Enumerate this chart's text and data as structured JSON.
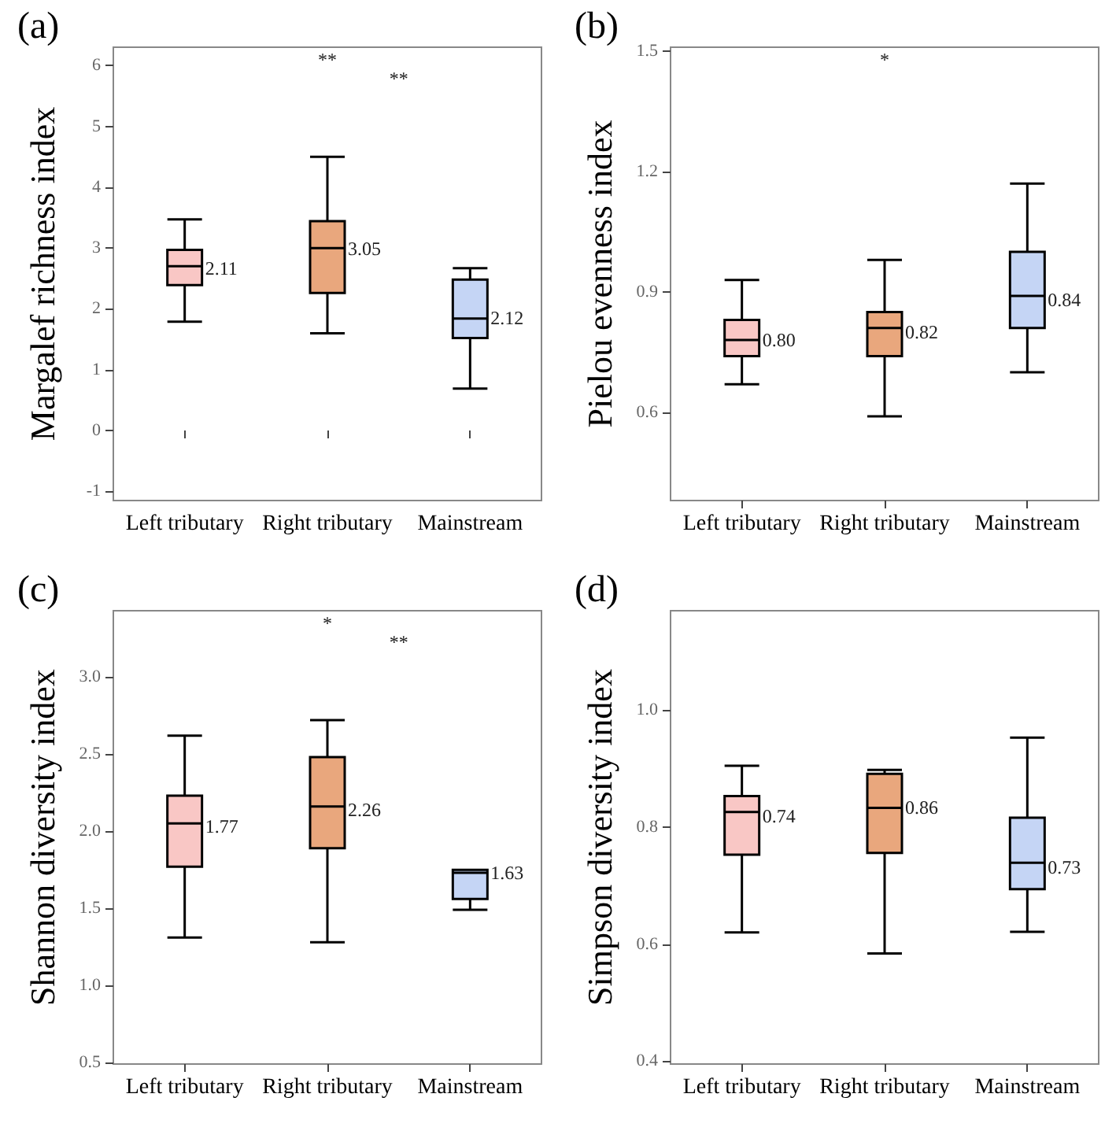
{
  "chart_data": [
    {
      "type": "box",
      "title": "(a)",
      "ylabel": "Margalef richness index",
      "categories": [
        "Left tributary",
        "Right tributary",
        "Mainstream"
      ],
      "colors": [
        "#f9c7c5",
        "#e9a77d",
        "#c5d5f5"
      ],
      "boxes": [
        {
          "low": 1.79,
          "q1": 2.39,
          "median": 2.7,
          "q3": 2.97,
          "high": 3.47
        },
        {
          "low": 1.6,
          "q1": 2.26,
          "median": 3.0,
          "q3": 3.44,
          "high": 4.5
        },
        {
          "low": 0.69,
          "q1": 1.52,
          "median": 1.84,
          "q3": 2.48,
          "high": 2.67
        }
      ],
      "ylim": [
        -1.15,
        6.3
      ],
      "yticks": [
        -1,
        0,
        1,
        2,
        3,
        4,
        5,
        6
      ],
      "grid": false,
      "annotations": [
        {
          "text": "2.11",
          "x": "Left tributary",
          "y": 2.66
        },
        {
          "text": "3.05",
          "x": "Right tributary",
          "y": 2.99
        },
        {
          "text": "2.12",
          "x": "Mainstream",
          "y": 1.85
        },
        "**",
        "**"
      ]
    },
    {
      "type": "box",
      "title": "(b)",
      "ylabel": "Pielou evenness index",
      "categories": [
        "Left tributary",
        "Right tributary",
        "Mainstream"
      ],
      "colors": [
        "#f9c7c5",
        "#e9a77d",
        "#c5d5f5"
      ],
      "boxes": [
        {
          "low": 0.67,
          "q1": 0.74,
          "median": 0.78,
          "q3": 0.83,
          "high": 0.93
        },
        {
          "low": 0.59,
          "q1": 0.74,
          "median": 0.81,
          "q3": 0.85,
          "high": 0.98
        },
        {
          "low": 0.7,
          "q1": 0.81,
          "median": 0.89,
          "q3": 1.0,
          "high": 1.17
        }
      ],
      "ylim": [
        0.38,
        1.51
      ],
      "yticks": [
        0.6,
        0.9,
        1.2,
        1.5
      ],
      "grid": false,
      "annotations": [
        {
          "text": "0.80",
          "x": "Left tributary",
          "y": 0.78
        },
        {
          "text": "0.82",
          "x": "Right tributary",
          "y": 0.8
        },
        {
          "text": "0.84",
          "x": "Mainstream",
          "y": 0.88
        },
        "*"
      ]
    },
    {
      "type": "box",
      "title": "(c)",
      "ylabel": "Shannon diversity index",
      "categories": [
        "Left tributary",
        "Right tributary",
        "Mainstream"
      ],
      "colors": [
        "#f9c7c5",
        "#e9a77d",
        "#c5d5f5"
      ],
      "boxes": [
        {
          "low": 1.31,
          "q1": 1.77,
          "median": 2.05,
          "q3": 2.23,
          "high": 2.62
        },
        {
          "low": 1.28,
          "q1": 1.89,
          "median": 2.16,
          "q3": 2.48,
          "high": 2.72
        },
        {
          "low": 1.49,
          "q1": 1.56,
          "median": 1.73,
          "q3": 1.75,
          "high": 1.75
        }
      ],
      "ylim": [
        0.49,
        3.43
      ],
      "yticks": [
        0.5,
        {
          "value": 1,
          "label": "1.0"
        },
        1.5,
        {
          "value": 2,
          "label": "2.0"
        },
        2.5,
        {
          "value": 3,
          "label": "3.0"
        }
      ],
      "grid": false,
      "annotations": [
        {
          "text": "1.77",
          "x": "Left tributary",
          "y": 2.03
        },
        {
          "text": "2.26",
          "x": "Right tributary",
          "y": 2.14
        },
        {
          "text": "1.63",
          "x": "Mainstream",
          "y": 1.73
        },
        "*",
        "**"
      ]
    },
    {
      "type": "box",
      "title": "(d)",
      "ylabel": "Simpson diversity index",
      "categories": [
        "Left tributary",
        "Right tributary",
        "Mainstream"
      ],
      "colors": [
        "#f9c7c5",
        "#e9a77d",
        "#c5d5f5"
      ],
      "boxes": [
        {
          "low": 0.62,
          "q1": 0.753,
          "median": 0.826,
          "q3": 0.853,
          "high": 0.905
        },
        {
          "low": 0.584,
          "q1": 0.756,
          "median": 0.833,
          "q3": 0.891,
          "high": 0.898
        },
        {
          "low": 0.621,
          "q1": 0.694,
          "median": 0.739,
          "q3": 0.816,
          "high": 0.953
        }
      ],
      "ylim": [
        0.395,
        1.17
      ],
      "yticks": [
        0.4,
        0.6,
        0.8,
        {
          "value": 1,
          "label": "1.0"
        }
      ],
      "grid": false,
      "annotations": [
        {
          "text": "0.74",
          "x": "Left tributary",
          "y": 0.819
        },
        {
          "text": "0.86",
          "x": "Right tributary",
          "y": 0.833
        },
        {
          "text": "0.73",
          "x": "Mainstream",
          "y": 0.731
        }
      ]
    }
  ]
}
